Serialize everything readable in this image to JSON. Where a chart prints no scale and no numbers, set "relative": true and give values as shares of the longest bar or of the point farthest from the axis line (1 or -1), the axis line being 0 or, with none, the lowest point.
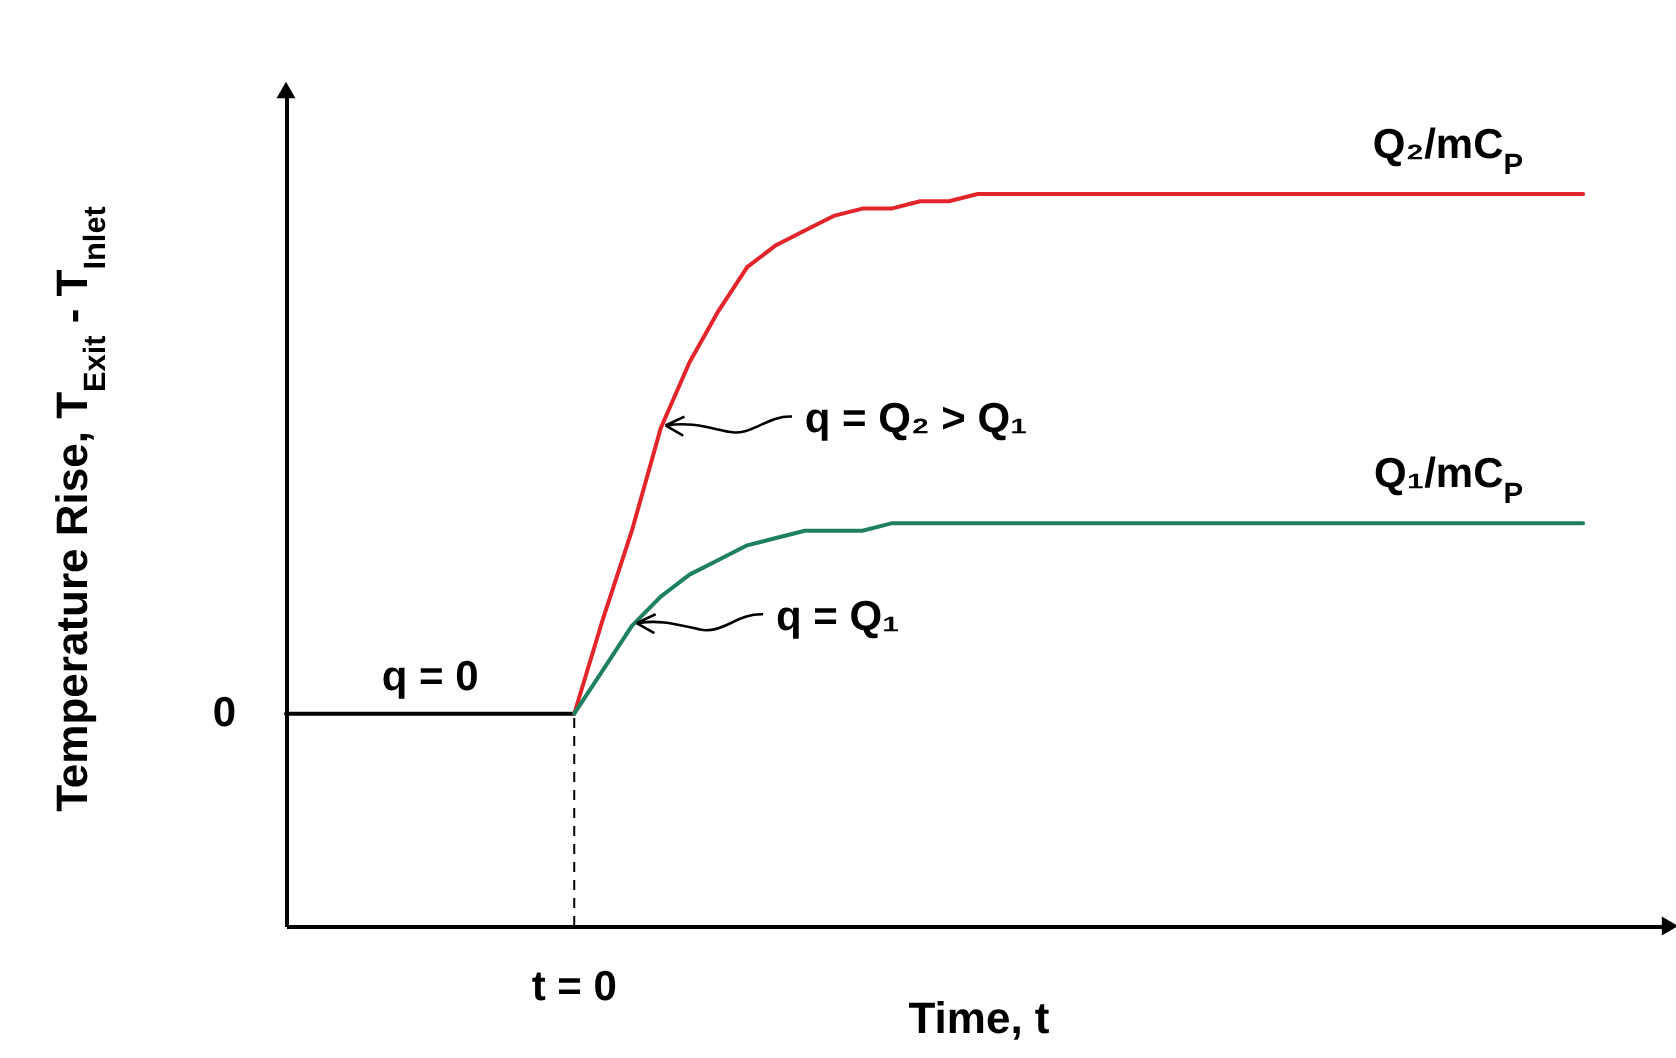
{
  "chart_data": {
    "type": "line",
    "relative": true,
    "xlabel": "Time, t",
    "ylabel": "Temperature Rise, T$_{Exit}$ - T$_{Inlet}$",
    "categories": [
      null,
      null,
      null,
      null,
      null,
      null,
      null,
      null,
      null,
      null,
      null,
      null,
      null,
      null,
      null,
      null,
      null,
      null,
      null,
      null,
      null,
      null,
      null,
      null,
      null,
      null,
      null,
      null,
      null,
      null,
      null,
      null,
      null,
      null,
      null,
      null,
      null,
      null,
      null,
      null,
      null,
      null,
      null,
      null,
      null,
      null
    ],
    "series": [
      {
        "color": "#000000",
        "values": [
          0.29,
          0.29,
          0.29,
          0.29,
          0.29,
          0.29,
          0.29,
          0.29,
          0.29,
          0.29,
          0.29,
          null,
          null,
          null,
          null,
          null,
          null,
          null,
          null,
          null,
          null,
          null,
          null,
          null,
          null,
          null,
          null,
          null,
          null,
          null,
          null,
          null,
          null,
          null,
          null,
          null,
          null,
          null,
          null,
          null,
          null,
          null,
          null,
          null,
          null,
          null
        ]
      },
      {
        "name": "Q₂/mC$_{P}$",
        "color": "#e3242b",
        "values": [
          null,
          null,
          null,
          null,
          null,
          null,
          null,
          null,
          null,
          null,
          0.29,
          0.42,
          0.54,
          0.68,
          0.77,
          0.84,
          0.9,
          0.93,
          0.95,
          0.97,
          0.98,
          0.98,
          0.99,
          0.99,
          1,
          1,
          1,
          1,
          1,
          1,
          1,
          1,
          1,
          1,
          1,
          1,
          1,
          1,
          1,
          1,
          1,
          1,
          1,
          1,
          1,
          1
        ]
      },
      {
        "name": "Q₁/mC$_{P}$",
        "color": "#1e8060",
        "values": [
          null,
          null,
          null,
          null,
          null,
          null,
          null,
          null,
          null,
          null,
          0.29,
          0.35,
          0.41,
          0.45,
          0.48,
          0.5,
          0.52,
          0.53,
          0.54,
          0.54,
          0.54,
          0.55,
          0.55,
          0.55,
          0.55,
          0.55,
          0.55,
          0.55,
          0.55,
          0.55,
          0.55,
          0.55,
          0.55,
          0.55,
          0.55,
          0.55,
          0.55,
          0.55,
          0.55,
          0.55,
          0.55,
          0.55,
          0.55,
          0.55,
          0.55,
          0.55
        ]
      }
    ],
    "annotations": [
      "q = 0",
      "t = 0",
      "0",
      "q = Q₂ > Q₁",
      "q = Q₁"
    ]
  }
}
